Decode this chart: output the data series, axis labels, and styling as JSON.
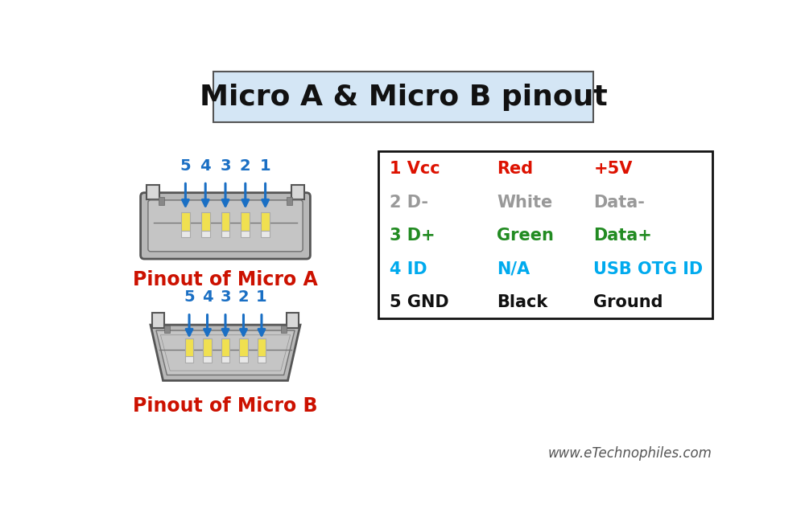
{
  "title": "Micro A & Micro B pinout",
  "title_fontsize": 26,
  "title_box_color": "#d4e6f5",
  "title_box_edgecolor": "#555555",
  "bg_color": "#ffffff",
  "connector_fill": "#b8b8b8",
  "connector_edge": "#555555",
  "connector_inner_fill": "#c8c8c8",
  "connector_inner_edge": "#888888",
  "pin_fill_top": "#f0e050",
  "pin_fill_bot": "#e0e0e0",
  "pin_edge": "#999999",
  "arrow_color": "#1a6fc4",
  "label_color": "#cc1100",
  "label_micro_a": "Pinout of Micro A",
  "label_micro_b": "Pinout of Micro B",
  "label_fontsize": 17,
  "pin_numbers": [
    "5",
    "4",
    "3",
    "2",
    "1"
  ],
  "pin_number_color": "#1a6fc4",
  "pin_number_fontsize": 14,
  "table_box_color": "#ffffff",
  "table_box_edgecolor": "#111111",
  "table_rows": [
    {
      "pin": "1 Vcc",
      "pin_color": "#dd1100",
      "color_name": "Red",
      "color_name_color": "#dd1100",
      "desc": "+5V",
      "desc_color": "#dd1100"
    },
    {
      "pin": "2 D-",
      "pin_color": "#999999",
      "color_name": "White",
      "color_name_color": "#999999",
      "desc": "Data-",
      "desc_color": "#999999"
    },
    {
      "pin": "3 D+",
      "pin_color": "#228b22",
      "color_name": "Green",
      "color_name_color": "#228b22",
      "desc": "Data+",
      "desc_color": "#228b22"
    },
    {
      "pin": "4 ID",
      "pin_color": "#00aaee",
      "color_name": "N/A",
      "color_name_color": "#00aaee",
      "desc": "USB OTG ID",
      "desc_color": "#00aaee"
    },
    {
      "pin": "5 GND",
      "pin_color": "#111111",
      "color_name": "Black",
      "color_name_color": "#111111",
      "desc": "Ground",
      "desc_color": "#111111"
    }
  ],
  "table_fontsize": 15,
  "website": "www.eTechnophiles.com",
  "website_fontsize": 12,
  "website_color": "#555555"
}
